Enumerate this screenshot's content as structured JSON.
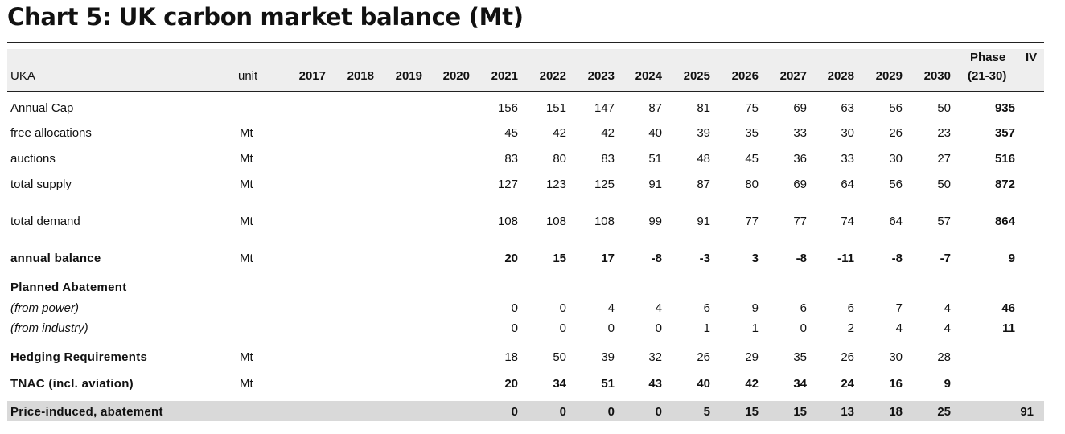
{
  "title": "Chart 5: UK carbon market balance (Mt)",
  "header": {
    "label": "UKA",
    "unit": "unit",
    "years": [
      "2017",
      "2018",
      "2019",
      "2020",
      "2021",
      "2022",
      "2023",
      "2024",
      "2025",
      "2026",
      "2027",
      "2028",
      "2029",
      "2030"
    ],
    "phase_line1": "Phase",
    "phase_iv": "IV",
    "phase_line2": "(21-30)"
  },
  "rows": [
    {
      "label": "Annual Cap",
      "unit": "",
      "values": [
        "",
        "",
        "",
        "",
        "156",
        "151",
        "147",
        "87",
        "81",
        "75",
        "69",
        "63",
        "56",
        "50"
      ],
      "phase": "935",
      "style": "normal"
    },
    {
      "label": "free allocations",
      "unit": "Mt",
      "values": [
        "",
        "",
        "",
        "",
        "45",
        "42",
        "42",
        "40",
        "39",
        "35",
        "33",
        "30",
        "26",
        "23"
      ],
      "phase": "357",
      "style": "normal"
    },
    {
      "label": "auctions",
      "unit": "Mt",
      "values": [
        "",
        "",
        "",
        "",
        "83",
        "80",
        "83",
        "51",
        "48",
        "45",
        "36",
        "33",
        "30",
        "27"
      ],
      "phase": "516",
      "style": "normal"
    },
    {
      "label": "total supply",
      "unit": "Mt",
      "values": [
        "",
        "",
        "",
        "",
        "127",
        "123",
        "125",
        "91",
        "87",
        "80",
        "69",
        "64",
        "56",
        "50"
      ],
      "phase": "872",
      "style": "normal"
    },
    {
      "label": "total demand",
      "unit": "Mt",
      "values": [
        "",
        "",
        "",
        "",
        "108",
        "108",
        "108",
        "99",
        "91",
        "77",
        "77",
        "74",
        "64",
        "57"
      ],
      "phase": "864",
      "style": "normal"
    },
    {
      "label": "annual balance",
      "unit": "Mt",
      "values": [
        "",
        "",
        "",
        "",
        "20",
        "15",
        "17",
        "-8",
        "-3",
        "3",
        "-8",
        "-11",
        "-8",
        "-7"
      ],
      "phase": "9",
      "style": "bold"
    },
    {
      "label": "Planned Abatement",
      "unit": "",
      "values": [
        "",
        "",
        "",
        "",
        "",
        "",
        "",
        "",
        "",
        "",
        "",
        "",
        "",
        ""
      ],
      "phase": "",
      "style": "bold"
    },
    {
      "label": "(from power)",
      "unit": "",
      "values": [
        "",
        "",
        "",
        "",
        "0",
        "0",
        "4",
        "4",
        "6",
        "9",
        "6",
        "6",
        "7",
        "4"
      ],
      "phase": "46",
      "style": "italic"
    },
    {
      "label": "(from industry)",
      "unit": "",
      "values": [
        "",
        "",
        "",
        "",
        "0",
        "0",
        "0",
        "0",
        "1",
        "1",
        "0",
        "2",
        "4",
        "4"
      ],
      "phase": "11",
      "style": "italic"
    },
    {
      "label": "Hedging Requirements",
      "unit": "Mt",
      "values": [
        "",
        "",
        "",
        "",
        "18",
        "50",
        "39",
        "32",
        "26",
        "29",
        "35",
        "26",
        "30",
        "28"
      ],
      "phase": "",
      "style": "hedging"
    },
    {
      "label": "TNAC (incl. aviation)",
      "unit": "Mt",
      "values": [
        "",
        "",
        "",
        "",
        "20",
        "34",
        "51",
        "43",
        "40",
        "42",
        "34",
        "24",
        "16",
        "9"
      ],
      "phase": "",
      "style": "bold"
    },
    {
      "label": "Price-induced, abatement",
      "unit": "",
      "values": [
        "",
        "",
        "",
        "",
        "0",
        "0",
        "0",
        "0",
        "5",
        "15",
        "15",
        "13",
        "18",
        "25"
      ],
      "phase": "91",
      "style": "price"
    }
  ]
}
